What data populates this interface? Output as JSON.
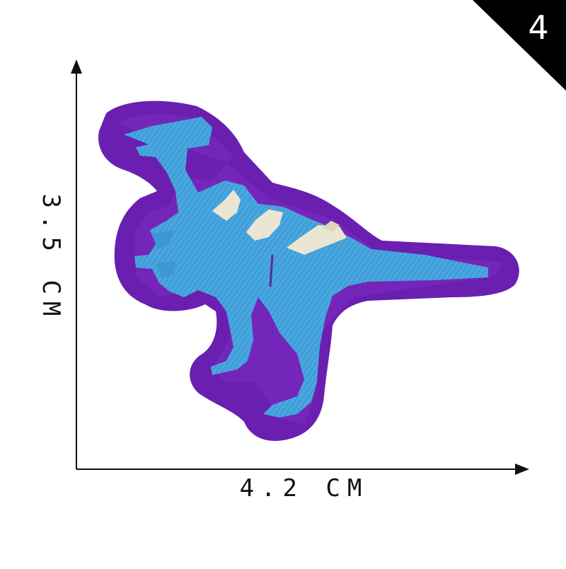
{
  "corner_badge": {
    "number": "4",
    "color": "#000000"
  },
  "dimensions": {
    "width": "4.2 CM",
    "height": "3.5 CM"
  },
  "patch": {
    "subject": "dinosaur-patch",
    "border_color": "#6a1fb0",
    "body_color": "#4aa8e0",
    "highlight_color": "#e8e4d2"
  }
}
